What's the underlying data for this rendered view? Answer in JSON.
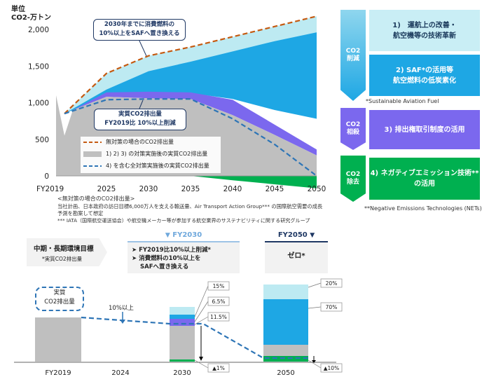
{
  "chart_data": [
    {
      "type": "area",
      "unit_label": "単位",
      "ylabel": "CO2-万トン",
      "yticks": [
        0,
        500,
        1000,
        1500,
        2000
      ],
      "ytick_labels": [
        "0",
        "500",
        "1,000",
        "1,500",
        "2,000"
      ],
      "xticks": [
        "FY2019",
        "2025",
        "2030",
        "2035",
        "2040",
        "2045",
        "2050"
      ],
      "ylim": [
        -170,
        2230
      ],
      "xlim": [
        2019,
        2050
      ],
      "series": [
        {
          "name": "無対策の場合のCO2排出量",
          "style": "dashed-line",
          "color": "#C55A11",
          "points": [
            [
              2020,
              850
            ],
            [
              2025,
              1400
            ],
            [
              2030,
              1640
            ],
            [
              2035,
              1760
            ],
            [
              2040,
              1900
            ],
            [
              2045,
              2040
            ],
            [
              2050,
              2180
            ]
          ]
        },
        {
          "name": "1) 2) 3) の対策実施後の実質CO2排出量",
          "style": "area",
          "color": "#BFBFBF",
          "points": [
            [
              2019,
              1100
            ],
            [
              2020,
              550
            ],
            [
              2021,
              900
            ],
            [
              2025,
              1080
            ],
            [
              2030,
              1060
            ],
            [
              2035,
              1050
            ],
            [
              2040,
              830
            ],
            [
              2045,
              560
            ],
            [
              2050,
              280
            ]
          ]
        },
        {
          "name": "4) を含む全対策実施後の実質CO2排出量",
          "style": "dashed-line",
          "color": "#2E75B6",
          "points": [
            [
              2020,
              850
            ],
            [
              2025,
              1040
            ],
            [
              2030,
              1050
            ],
            [
              2035,
              1050
            ],
            [
              2040,
              780
            ],
            [
              2045,
              430
            ],
            [
              2050,
              0
            ]
          ]
        }
      ],
      "annotations": {
        "top_callout": [
          "2030年までに消費燃料の",
          "10%以上をSAFへ置き換える"
        ],
        "mid_callout": [
          "実質CO2排出量",
          "FY2019比 10%以上削減"
        ]
      },
      "footnotes": [
        "<無対策の場合のCO2排出量>",
        "当社計画、日本政府の訪日目標6,000万人を支える輸送量、Air Transport Action Group*** の国際航空需要の成長",
        "予測を勘案して想定",
        "*** IATA（国際航空運送協会）や航空機メーカー等が参加する航空業界のサステナビリティに関する研究グループ"
      ]
    },
    {
      "type": "bar",
      "categories": [
        "FY2019",
        "2024",
        "2030",
        "2050"
      ],
      "label_10pct": "10%以上",
      "bar_2030_segments": [
        {
          "label": "▲1%",
          "value": 1,
          "color": "#00B050"
        },
        {
          "label": "11.5%",
          "value": 11.5,
          "color": "#7B68EE"
        },
        {
          "label": "6.5%",
          "value": 6.5,
          "color": "#1EA7E4"
        },
        {
          "label": "15%",
          "value": 15,
          "color": "#BDEAF2"
        }
      ],
      "bar_2050_segments": [
        {
          "label": "▲10%",
          "value": 10,
          "color": "#00B050"
        },
        {
          "label": "70%",
          "value": 70,
          "color": "#1EA7E4"
        },
        {
          "label": "20%",
          "value": 20,
          "color": "#BDEAF2"
        }
      ],
      "callout": [
        "実質",
        "CO2排出量"
      ]
    }
  ],
  "right_panel": {
    "groups": [
      {
        "label": [
          "CO2",
          "削減"
        ],
        "color": "#1EA7E4"
      },
      {
        "label": [
          "CO2",
          "相殺"
        ],
        "color": "#7B68EE"
      },
      {
        "label": [
          "CO2",
          "除去"
        ],
        "color": "#00B050"
      }
    ],
    "items": [
      {
        "text": [
          "1)　運航上の改善・",
          "航空機等の技術革新"
        ],
        "bg": "#C9EEF5",
        "fg": "#1B3A5C"
      },
      {
        "text": [
          "2) SAF*の活用等",
          "航空燃料の低炭素化"
        ],
        "bg": "#1EA7E4",
        "fg": "#FFFFFF"
      },
      {
        "text": [
          "3) 排出権取引制度の活用"
        ],
        "bg": "#7B68EE",
        "fg": "#FFFFFF"
      },
      {
        "text": [
          "4) ネガティブエミッション技術**",
          "の活用"
        ],
        "bg": "#00B050",
        "fg": "#FFFFFF"
      }
    ],
    "note_saf": "*Sustainable Aviation Fuel",
    "note_net": "**Negative Emissions Technologies (NETs)"
  },
  "targets": {
    "title": "中期・長期環境目標",
    "subtitle": "*実質CO2排出量",
    "fy2030_header": "FY2030",
    "fy2030_items": [
      "FY2019比10%以上削減*",
      "消費燃料の10%以上を",
      "SAFへ置き換える"
    ],
    "fy2050_header": "FY2050",
    "fy2050_text": "ゼロ*"
  },
  "colors": {
    "no_measure": "#C55A11",
    "light_cyan": "#BDEAF2",
    "blue": "#1EA7E4",
    "purple": "#7B68EE",
    "green": "#00B050",
    "gray": "#BFBFBF",
    "navy": "#1F3864"
  }
}
